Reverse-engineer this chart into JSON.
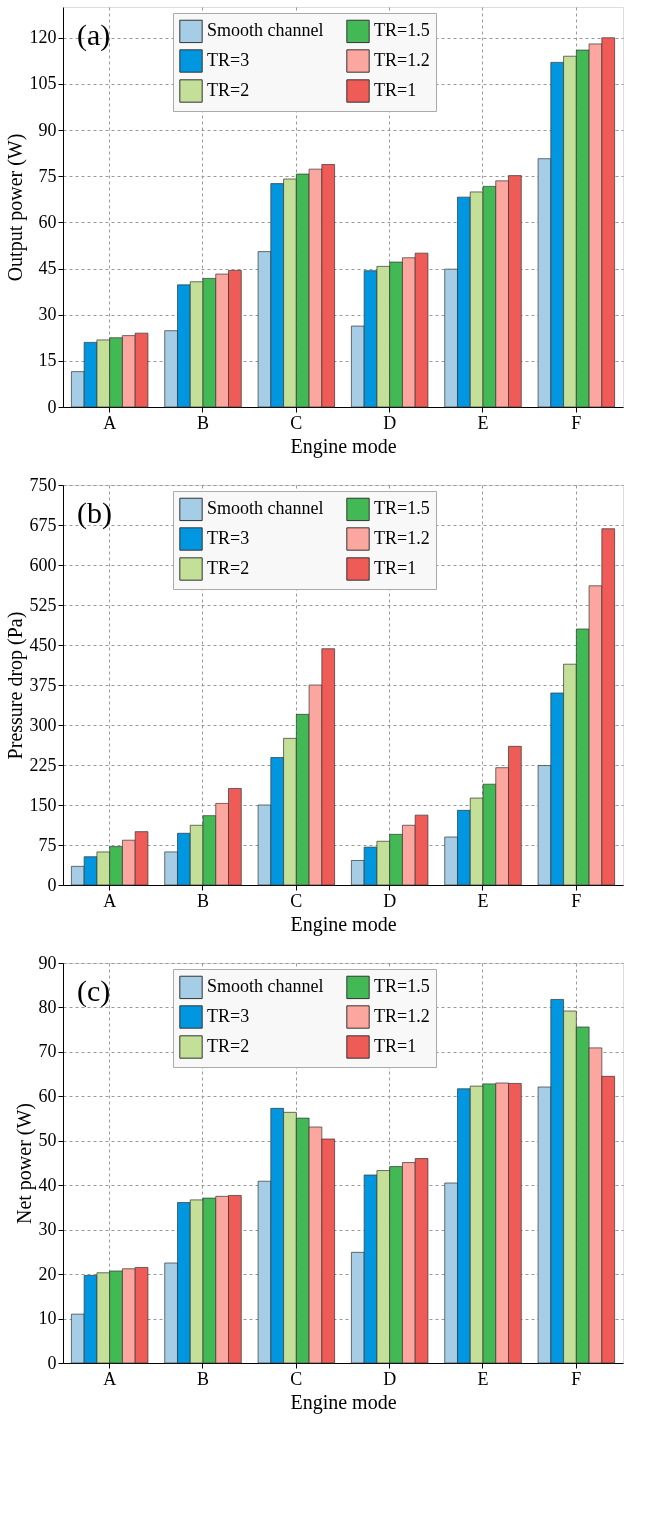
{
  "chart_data": [
    {
      "type": "bar",
      "annotations": [
        "(a)"
      ],
      "xlabel": "Engine mode",
      "ylabel": "Output power (W)",
      "categories": [
        "A",
        "B",
        "C",
        "D",
        "E",
        "F"
      ],
      "ylim": [
        0,
        130
      ],
      "yticks": [
        0,
        15,
        30,
        45,
        60,
        75,
        90,
        105,
        120
      ],
      "grid": true,
      "legend": "top",
      "series": [
        {
          "name": "Smooth channel",
          "color": "#a6cde6",
          "values": [
            11.5,
            24.8,
            50.5,
            26.3,
            44.8,
            80.7
          ]
        },
        {
          "name": "TR=3",
          "color": "#0096e0",
          "values": [
            21,
            39.7,
            72.6,
            44.3,
            68.2,
            112
          ]
        },
        {
          "name": "TR=2",
          "color": "#c3df98",
          "values": [
            21.8,
            40.7,
            74.1,
            45.7,
            69.9,
            114
          ]
        },
        {
          "name": "TR=1.5",
          "color": "#43b956",
          "values": [
            22.5,
            41.8,
            75.7,
            47.1,
            71.7,
            116
          ]
        },
        {
          "name": "TR=1.2",
          "color": "#fca6a0",
          "values": [
            23.2,
            43.2,
            77.3,
            48.5,
            73.5,
            118
          ]
        },
        {
          "name": "TR=1",
          "color": "#ef5b56",
          "values": [
            24,
            44.4,
            78.8,
            50,
            75.2,
            120
          ]
        }
      ]
    },
    {
      "type": "bar",
      "annotations": [
        "(b)"
      ],
      "xlabel": "Engine mode",
      "ylabel": "Pressure drop (Pa)",
      "categories": [
        "A",
        "B",
        "C",
        "D",
        "E",
        "F"
      ],
      "ylim": [
        0,
        750
      ],
      "yticks": [
        0,
        75,
        150,
        225,
        300,
        375,
        450,
        525,
        600,
        675,
        750
      ],
      "grid": true,
      "legend": "top",
      "series": [
        {
          "name": "Smooth channel",
          "color": "#a6cde6",
          "values": [
            35,
            62,
            150,
            46,
            90,
            224
          ]
        },
        {
          "name": "TR=3",
          "color": "#0096e0",
          "values": [
            53,
            97,
            239,
            71,
            140,
            360
          ]
        },
        {
          "name": "TR=2",
          "color": "#c3df98",
          "values": [
            62,
            112,
            275,
            82,
            163,
            414
          ]
        },
        {
          "name": "TR=1.5",
          "color": "#43b956",
          "values": [
            72,
            130,
            320,
            95,
            189,
            480
          ]
        },
        {
          "name": "TR=1.2",
          "color": "#fca6a0",
          "values": [
            84,
            153,
            375,
            112,
            220,
            561
          ]
        },
        {
          "name": "TR=1",
          "color": "#ef5b56",
          "values": [
            100,
            181,
            443,
            131,
            260,
            668
          ]
        }
      ]
    },
    {
      "type": "bar",
      "annotations": [
        "(c)"
      ],
      "xlabel": "Engine mode",
      "ylabel": "Net power (W)",
      "categories": [
        "A",
        "B",
        "C",
        "D",
        "E",
        "F"
      ],
      "ylim": [
        0,
        90
      ],
      "yticks": [
        0,
        10,
        20,
        30,
        40,
        50,
        60,
        70,
        80,
        90
      ],
      "grid": true,
      "legend": "top",
      "series": [
        {
          "name": "Smooth channel",
          "color": "#a6cde6",
          "values": [
            11,
            22.5,
            40.9,
            24.9,
            40.5,
            62.1
          ]
        },
        {
          "name": "TR=3",
          "color": "#0096e0",
          "values": [
            19.7,
            36.1,
            57.3,
            42.3,
            61.7,
            81.8
          ]
        },
        {
          "name": "TR=2",
          "color": "#c3df98",
          "values": [
            20.3,
            36.7,
            56.4,
            43.3,
            62.3,
            79.2
          ]
        },
        {
          "name": "TR=1.5",
          "color": "#43b956",
          "values": [
            20.7,
            37.1,
            55.1,
            44.2,
            62.8,
            75.6
          ]
        },
        {
          "name": "TR=1.2",
          "color": "#fca6a0",
          "values": [
            21.2,
            37.5,
            53.1,
            45.1,
            63,
            70.9
          ]
        },
        {
          "name": "TR=1",
          "color": "#ef5b56",
          "values": [
            21.5,
            37.7,
            50.4,
            46,
            62.9,
            64.5
          ]
        }
      ]
    }
  ]
}
